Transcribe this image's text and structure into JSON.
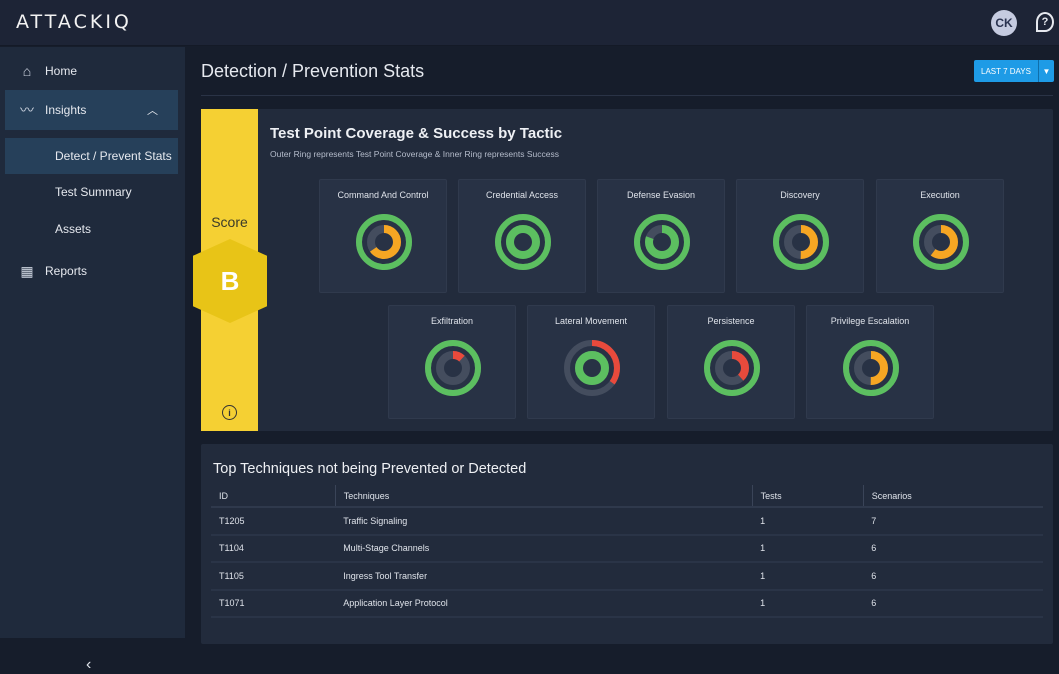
{
  "header": {
    "logo": "ATTACKIQ",
    "avatar_initials": "CK",
    "help_icon": "question-icon"
  },
  "sidebar": {
    "items": [
      {
        "label": "Home",
        "icon": "home-icon"
      },
      {
        "label": "Insights",
        "icon": "insights-icon",
        "expanded": true
      },
      {
        "label": "Detect / Prevent Stats",
        "active": true
      },
      {
        "label": "Test Summary"
      },
      {
        "label": "Assets"
      },
      {
        "label": "Reports",
        "icon": "grid-icon"
      }
    ]
  },
  "page": {
    "title": "Detection / Prevention Stats",
    "date_range": "LAST 7 DAYS"
  },
  "score": {
    "label": "Score",
    "grade": "B",
    "color": "#f5d033"
  },
  "coverage": {
    "title": "Test Point Coverage & Success by Tactic",
    "subtitle": "Outer Ring represents Test Point Coverage & Inner Ring represents Success",
    "colors": {
      "good": "#5cbf60",
      "medium": "#f6a623",
      "bad": "#e84a3c",
      "track": "#444d5e"
    },
    "tactics": [
      {
        "name": "Command And Control",
        "coverage": 1.0,
        "coverage_status": "good",
        "success": 0.65,
        "success_status": "medium"
      },
      {
        "name": "Credential Access",
        "coverage": 1.0,
        "coverage_status": "good",
        "success": 1.0,
        "success_status": "good"
      },
      {
        "name": "Defense Evasion",
        "coverage": 1.0,
        "coverage_status": "good",
        "success": 0.8,
        "success_status": "good"
      },
      {
        "name": "Discovery",
        "coverage": 1.0,
        "coverage_status": "good",
        "success": 0.5,
        "success_status": "medium"
      },
      {
        "name": "Execution",
        "coverage": 1.0,
        "coverage_status": "good",
        "success": 0.6,
        "success_status": "medium"
      },
      {
        "name": "Exfiltration",
        "coverage": 1.0,
        "coverage_status": "good",
        "success": 0.12,
        "success_status": "bad"
      },
      {
        "name": "Lateral Movement",
        "coverage": 0.35,
        "coverage_status": "bad",
        "success": 1.0,
        "success_status": "good"
      },
      {
        "name": "Persistence",
        "coverage": 1.0,
        "coverage_status": "good",
        "success": 0.38,
        "success_status": "bad"
      },
      {
        "name": "Privilege Escalation",
        "coverage": 1.0,
        "coverage_status": "good",
        "success": 0.5,
        "success_status": "medium"
      }
    ]
  },
  "techniques": {
    "title": "Top Techniques not being Prevented or Detected",
    "columns": [
      "ID",
      "Techniques",
      "Tests",
      "Scenarios"
    ],
    "rows": [
      [
        "T1205",
        "Traffic Signaling",
        "1",
        "7"
      ],
      [
        "T1104",
        "Multi-Stage Channels",
        "1",
        "6"
      ],
      [
        "T1105",
        "Ingress Tool Transfer",
        "1",
        "6"
      ],
      [
        "T1071",
        "Application Layer Protocol",
        "1",
        "6"
      ]
    ]
  }
}
